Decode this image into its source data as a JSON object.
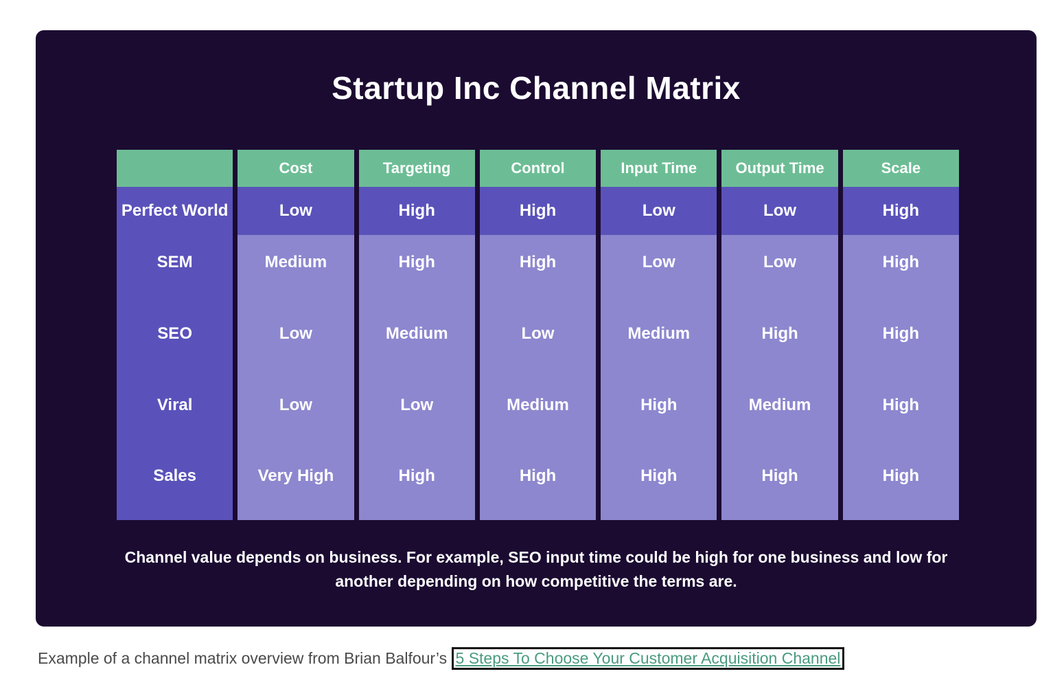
{
  "card": {
    "title": "Startup Inc Channel Matrix",
    "background": "#1b0b31",
    "caption_lines": [
      "Channel value depends on business. For example, SEO input time could be high for one business and low for",
      "another depending on how competitive the terms are."
    ]
  },
  "chart_data": {
    "type": "table",
    "columns": [
      "",
      "Cost",
      "Targeting",
      "Control",
      "Input Time",
      "Output Time",
      "Scale"
    ],
    "rows": [
      {
        "label": "Perfect World",
        "values": [
          "Low",
          "High",
          "High",
          "Low",
          "Low",
          "High"
        ]
      },
      {
        "label": "SEM",
        "values": [
          "Medium",
          "High",
          "High",
          "Low",
          "Low",
          "High"
        ]
      },
      {
        "label": "SEO",
        "values": [
          "Low",
          "Medium",
          "Low",
          "Medium",
          "High",
          "High"
        ]
      },
      {
        "label": "Viral",
        "values": [
          "Low",
          "Low",
          "Medium",
          "High",
          "Medium",
          "High"
        ]
      },
      {
        "label": "Sales",
        "values": [
          "Very High",
          "High",
          "High",
          "High",
          "High",
          "High"
        ]
      }
    ],
    "colors": {
      "header_green": "#6cbd95",
      "row_dark_purple": "#5a52ba",
      "row_light_purple": "#8d87cf",
      "card_background": "#1b0b31",
      "text": "#ffffff"
    },
    "legend_position": "none",
    "grid": false
  },
  "footer": {
    "prefix": "Example of a channel matrix overview from Brian Balfour’s ",
    "link_text": "5 Steps To Choose Your Customer Acquisition Channel",
    "link_color": "#4a9b7f"
  }
}
